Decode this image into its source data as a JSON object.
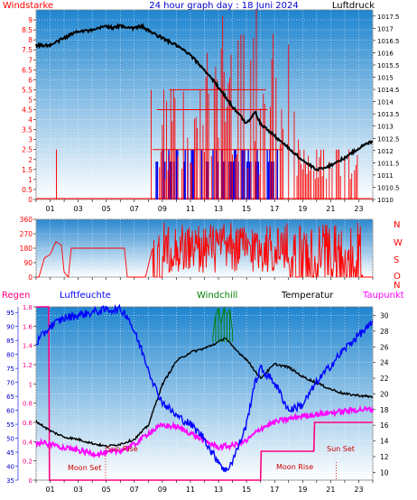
{
  "title": "24 hour graph day : 18 Juni 2024",
  "colors": {
    "wind": "#ff0000",
    "gust": "#0000ee",
    "pressure": "#000000",
    "humidity": "#0000ff",
    "windchill": "#008000",
    "temperature": "#000000",
    "dewpoint": "#ff00ff",
    "rain": "#ff0080",
    "moon_sun": "#cc0000"
  },
  "chart_data": [
    {
      "type": "line",
      "panel": "wind-pressure",
      "left_label": "Windstarke",
      "right_label": "Luftdruck",
      "x_ticks": [
        "01",
        "03",
        "05",
        "07",
        "09",
        "11",
        "13",
        "15",
        "17",
        "19",
        "21",
        "23"
      ],
      "x_range": [
        0,
        24
      ],
      "ylim_left": [
        0,
        9.5
      ],
      "y_ticks_left": [
        "0",
        "0.5",
        "1",
        "1.5",
        "2",
        "2.5",
        "3",
        "3.5",
        "4",
        "4.5",
        "5",
        "5.5",
        "6",
        "6.5",
        "7",
        "7.5",
        "8",
        "8.5",
        "9"
      ],
      "ylim_right": [
        1010,
        1017.75
      ],
      "y_ticks_right": [
        "1010",
        "1010.5",
        "1011",
        "1011.5",
        "1012",
        "1012.5",
        "1013",
        "1013.5",
        "1014",
        "1014.5",
        "1015",
        "1015.5",
        "1016",
        "1016.5",
        "1017",
        "1017.5"
      ],
      "series": [
        {
          "axis": "right",
          "x": [
            0,
            1,
            2,
            3,
            4,
            5,
            5.5,
            6,
            7,
            7.5,
            8,
            9,
            10,
            11,
            12,
            13,
            14,
            15,
            15.6,
            16,
            17,
            18,
            19,
            20,
            21,
            22,
            23,
            24
          ],
          "values": [
            1016.3,
            1016.3,
            1016.6,
            1016.9,
            1016.9,
            1017.1,
            1017.0,
            1017.1,
            1017.0,
            1017.1,
            1016.9,
            1016.6,
            1016.3,
            1015.9,
            1015.3,
            1014.6,
            1013.8,
            1013.1,
            1013.6,
            1013.1,
            1012.6,
            1012.1,
            1011.6,
            1011.2,
            1011.4,
            1011.7,
            1012.1,
            1012.4
          ]
        }
      ]
    },
    {
      "type": "line",
      "panel": "wind-direction",
      "x_range": [
        0,
        24
      ],
      "ylim": [
        0,
        360
      ],
      "y_ticks": [
        "0",
        "90",
        "180",
        "270",
        "360"
      ],
      "right_letters": [
        "N",
        "W",
        "S",
        "O",
        "N"
      ],
      "series": [
        {
          "x": [
            0,
            0.2,
            0.6,
            1.0,
            1.4,
            1.8,
            2.0,
            2.3,
            2.5,
            3.5,
            4.5,
            5.5,
            6.3,
            6.5,
            7.8,
            8.3
          ],
          "values": [
            0,
            0,
            120,
            140,
            220,
            200,
            30,
            0,
            180,
            180,
            180,
            180,
            180,
            0,
            0,
            180
          ]
        }
      ]
    },
    {
      "type": "line",
      "panel": "humidity-temperature",
      "labels": [
        "Regen",
        "Luftfeuchte",
        "Windchill",
        "Temperatur",
        "Taupunkt"
      ],
      "x_range": [
        0,
        24
      ],
      "ylim_rain": [
        0,
        1.8
      ],
      "y_ticks_rain": [
        "0",
        "0.2",
        "0.4",
        "0.6",
        "0.8",
        "1",
        "1.2",
        "1.4",
        "1.6",
        "1.8"
      ],
      "ylim_humidity": [
        35,
        97
      ],
      "y_ticks_humidity": [
        "35",
        "40",
        "45",
        "50",
        "55",
        "60",
        "65",
        "70",
        "75",
        "80",
        "85",
        "90",
        "95"
      ],
      "ylim_temperature": [
        9,
        31.1
      ],
      "y_ticks_temperature": [
        "10",
        "12",
        "14",
        "16",
        "18",
        "20",
        "22",
        "24",
        "26",
        "28",
        "30"
      ],
      "annotations": [
        "Moon Set",
        "Sun Rise",
        "Moon Rise",
        "Sun Set"
      ],
      "series": [
        {
          "name": "Luftfeuchte",
          "x": [
            0,
            0.5,
            1,
            2,
            3,
            4,
            5,
            6,
            6.5,
            7,
            7.5,
            8,
            8.5,
            9,
            10,
            11,
            12,
            12.5,
            13,
            13.5,
            14,
            14.5,
            15,
            15.5,
            16,
            17,
            18,
            19,
            20,
            21,
            22,
            23,
            24
          ],
          "values": [
            84,
            87,
            90,
            93,
            94,
            95,
            96,
            96,
            94,
            88,
            82,
            75,
            68,
            63,
            58,
            55,
            50,
            45,
            42,
            38,
            42,
            48,
            55,
            68,
            75,
            70,
            60,
            62,
            70,
            76,
            82,
            87,
            91
          ]
        },
        {
          "name": "Temperatur",
          "x": [
            0,
            1,
            2,
            3,
            4,
            5,
            6,
            7,
            8,
            9,
            10,
            11,
            12,
            13,
            13.5,
            14,
            15,
            16,
            17,
            18,
            19,
            20,
            21,
            22,
            23,
            24
          ],
          "values": [
            16.5,
            15.3,
            14.5,
            14.2,
            13.7,
            13.3,
            13.6,
            14.2,
            16.0,
            21.2,
            24.2,
            25.3,
            25.8,
            26.6,
            27.2,
            26.0,
            24.4,
            22.0,
            23.8,
            23.4,
            22.2,
            21.4,
            20.6,
            20.0,
            19.8,
            19.6
          ]
        },
        {
          "name": "Taupunkt",
          "x": [
            0,
            1,
            2,
            3,
            4,
            5,
            6,
            7,
            8,
            9,
            10,
            11,
            12,
            13,
            14,
            15,
            16,
            17,
            18,
            19,
            20,
            21,
            22,
            23,
            24
          ],
          "values": [
            13.8,
            13.6,
            13.2,
            12.8,
            12.4,
            12.4,
            12.8,
            13.5,
            15.0,
            16.0,
            15.8,
            15.0,
            14.0,
            13.2,
            13.4,
            14.0,
            15.6,
            16.4,
            16.8,
            17.2,
            17.4,
            17.6,
            17.8,
            18.0,
            18.0
          ]
        },
        {
          "name": "Windchill",
          "x": [
            12.6,
            12.8,
            13.0,
            13.2,
            13.4,
            13.6,
            13.8,
            14.0
          ],
          "values": [
            27.4,
            30.0,
            31.0,
            29.0,
            31.0,
            30.0,
            30.8,
            28.0
          ]
        },
        {
          "name": "Regen",
          "x": [
            0,
            0.9,
            0.95,
            16.0,
            16.05,
            19.8,
            19.85,
            24
          ],
          "values": [
            1.8,
            1.8,
            0.0,
            0.0,
            0.3,
            0.3,
            0.6,
            0.6
          ]
        }
      ]
    }
  ]
}
